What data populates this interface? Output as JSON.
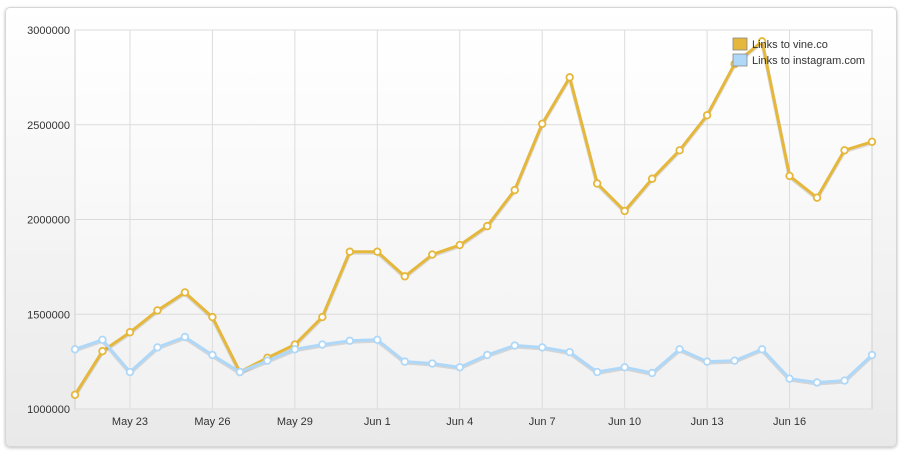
{
  "chart_data": {
    "type": "line",
    "title": "",
    "xlabel": "",
    "ylabel": "",
    "ylim": [
      1000000,
      3000000
    ],
    "y_ticks": [
      "1000000",
      "1500000",
      "2000000",
      "2500000",
      "3000000"
    ],
    "y_tick_values": [
      1000000,
      1500000,
      2000000,
      2500000,
      3000000
    ],
    "x_tick_labels": [
      "May 23",
      "May 26",
      "May 29",
      "Jun 1",
      "Jun 4",
      "Jun 7",
      "Jun 10",
      "Jun 13",
      "Jun 16"
    ],
    "x_dates": [
      "May 21",
      "May 22",
      "May 23",
      "May 24",
      "May 25",
      "May 26",
      "May 27",
      "May 28",
      "May 29",
      "May 30",
      "May 31",
      "Jun 1",
      "Jun 2",
      "Jun 3",
      "Jun 4",
      "Jun 5",
      "Jun 6",
      "Jun 7",
      "Jun 8",
      "Jun 9",
      "Jun 10",
      "Jun 11",
      "Jun 12",
      "Jun 13",
      "Jun 14",
      "Jun 15",
      "Jun 16",
      "Jun 17",
      "Jun 18",
      "Jun 19"
    ],
    "grid": true,
    "legend_position": "top-right",
    "series": [
      {
        "name": "Links to vine.co",
        "color": "#e5b73b",
        "values": [
          1075000,
          1305000,
          1405000,
          1520000,
          1615000,
          1485000,
          1195000,
          1270000,
          1340000,
          1485000,
          1830000,
          1830000,
          1700000,
          1815000,
          1865000,
          1965000,
          2155000,
          2505000,
          2750000,
          2190000,
          2045000,
          2215000,
          2365000,
          2550000,
          2820000,
          2940000,
          2230000,
          2115000,
          2365000,
          2410000
        ]
      },
      {
        "name": "Links to instagram.com",
        "color": "#afd8f8",
        "values": [
          1315000,
          1365000,
          1195000,
          1325000,
          1380000,
          1285000,
          1195000,
          1255000,
          1315000,
          1340000,
          1360000,
          1365000,
          1250000,
          1240000,
          1220000,
          1285000,
          1335000,
          1325000,
          1300000,
          1195000,
          1220000,
          1190000,
          1315000,
          1250000,
          1255000,
          1315000,
          1160000,
          1140000,
          1150000,
          1285000
        ]
      }
    ]
  }
}
